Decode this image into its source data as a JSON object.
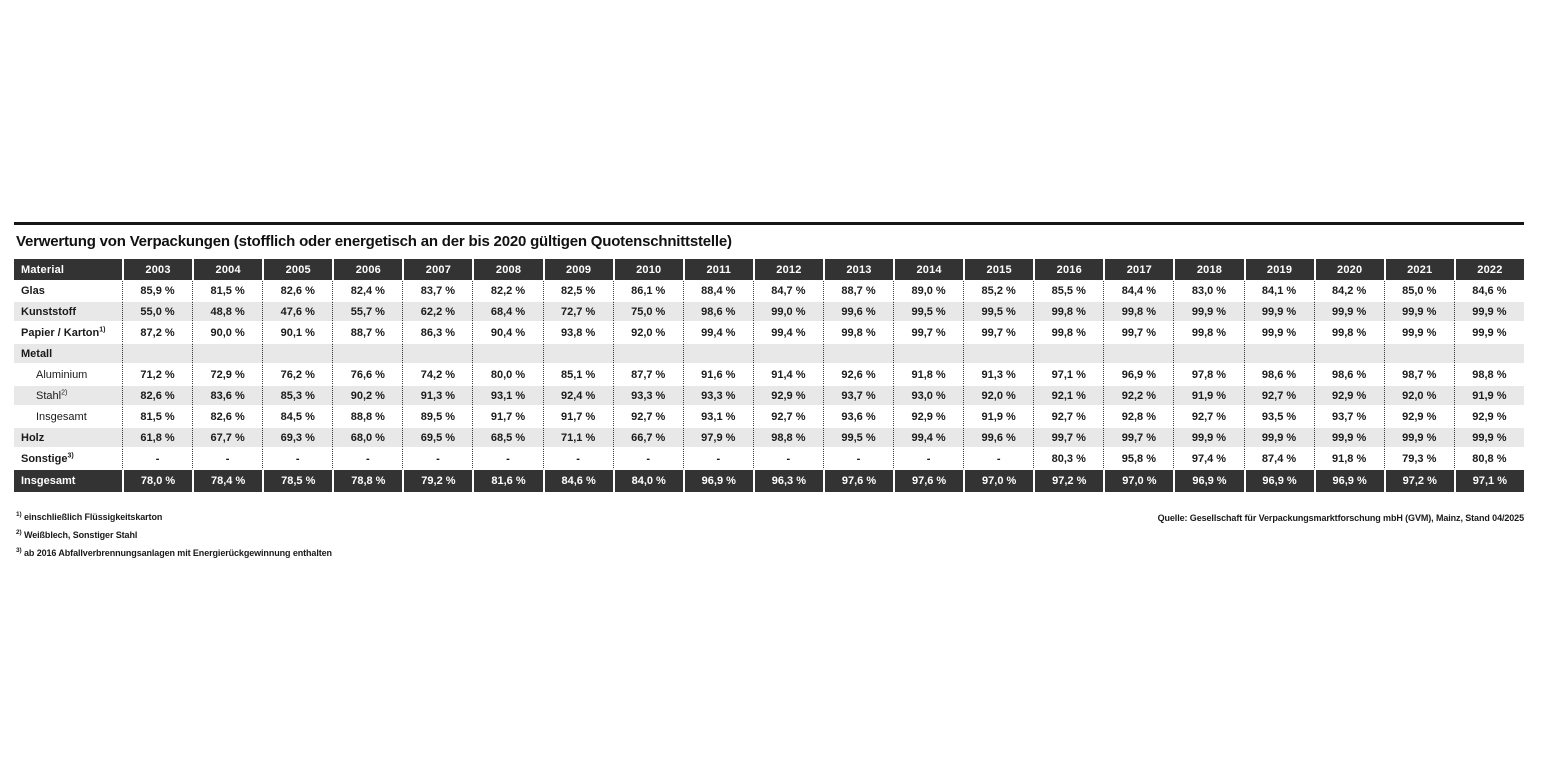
{
  "chart_data": {
    "type": "table",
    "title": "Verwertung von Verpackungen (stofflich oder energetisch an der bis 2020 gültigen Quotenschnittstelle)",
    "material_header": "Material",
    "years": [
      "2003",
      "2004",
      "2005",
      "2006",
      "2007",
      "2008",
      "2009",
      "2010",
      "2011",
      "2012",
      "2013",
      "2014",
      "2015",
      "2016",
      "2017",
      "2018",
      "2019",
      "2020",
      "2021",
      "2022"
    ],
    "rows": [
      {
        "label": "Glas",
        "sup": "",
        "indent": false,
        "bold": true,
        "stripe": false,
        "values": [
          "85,9 %",
          "81,5 %",
          "82,6 %",
          "82,4 %",
          "83,7 %",
          "82,2 %",
          "82,5 %",
          "86,1 %",
          "88,4 %",
          "84,7 %",
          "88,7 %",
          "89,0 %",
          "85,2 %",
          "85,5 %",
          "84,4 %",
          "83,0 %",
          "84,1 %",
          "84,2 %",
          "85,0 %",
          "84,6 %"
        ]
      },
      {
        "label": "Kunststoff",
        "sup": "",
        "indent": false,
        "bold": true,
        "stripe": true,
        "values": [
          "55,0 %",
          "48,8 %",
          "47,6 %",
          "55,7 %",
          "62,2 %",
          "68,4 %",
          "72,7 %",
          "75,0 %",
          "98,6 %",
          "99,0 %",
          "99,6 %",
          "99,5 %",
          "99,5 %",
          "99,8 %",
          "99,8 %",
          "99,9 %",
          "99,9 %",
          "99,9 %",
          "99,9 %",
          "99,9 %"
        ]
      },
      {
        "label": "Papier / Karton",
        "sup": "1)",
        "indent": false,
        "bold": true,
        "stripe": false,
        "values": [
          "87,2 %",
          "90,0 %",
          "90,1 %",
          "88,7 %",
          "86,3 %",
          "90,4 %",
          "93,8 %",
          "92,0 %",
          "99,4 %",
          "99,4 %",
          "99,8 %",
          "99,7 %",
          "99,7 %",
          "99,8 %",
          "99,7 %",
          "99,8 %",
          "99,9 %",
          "99,8 %",
          "99,9 %",
          "99,9 %"
        ]
      },
      {
        "label": "Metall",
        "sup": "",
        "indent": false,
        "bold": true,
        "stripe": true,
        "values": [
          "",
          "",
          "",
          "",
          "",
          "",
          "",
          "",
          "",
          "",
          "",
          "",
          "",
          "",
          "",
          "",
          "",
          "",
          "",
          ""
        ]
      },
      {
        "label": "Aluminium",
        "sup": "",
        "indent": true,
        "bold": false,
        "stripe": false,
        "values": [
          "71,2 %",
          "72,9 %",
          "76,2 %",
          "76,6 %",
          "74,2 %",
          "80,0 %",
          "85,1 %",
          "87,7 %",
          "91,6 %",
          "91,4 %",
          "92,6 %",
          "91,8 %",
          "91,3 %",
          "97,1 %",
          "96,9 %",
          "97,8 %",
          "98,6 %",
          "98,6 %",
          "98,7 %",
          "98,8 %"
        ]
      },
      {
        "label": "Stahl",
        "sup": "2)",
        "indent": true,
        "bold": false,
        "stripe": true,
        "values": [
          "82,6 %",
          "83,6 %",
          "85,3 %",
          "90,2 %",
          "91,3 %",
          "93,1 %",
          "92,4 %",
          "93,3 %",
          "93,3 %",
          "92,9 %",
          "93,7 %",
          "93,0 %",
          "92,0 %",
          "92,1 %",
          "92,2 %",
          "91,9 %",
          "92,7 %",
          "92,9 %",
          "92,0 %",
          "91,9 %"
        ]
      },
      {
        "label": "Insgesamt",
        "sup": "",
        "indent": true,
        "bold": false,
        "stripe": false,
        "values": [
          "81,5 %",
          "82,6 %",
          "84,5 %",
          "88,8 %",
          "89,5 %",
          "91,7 %",
          "91,7 %",
          "92,7 %",
          "93,1 %",
          "92,7 %",
          "93,6 %",
          "92,9 %",
          "91,9 %",
          "92,7 %",
          "92,8 %",
          "92,7 %",
          "93,5 %",
          "93,7 %",
          "92,9 %",
          "92,9 %"
        ]
      },
      {
        "label": "Holz",
        "sup": "",
        "indent": false,
        "bold": true,
        "stripe": true,
        "values": [
          "61,8 %",
          "67,7 %",
          "69,3 %",
          "68,0 %",
          "69,5 %",
          "68,5 %",
          "71,1 %",
          "66,7 %",
          "97,9 %",
          "98,8 %",
          "99,5 %",
          "99,4 %",
          "99,6 %",
          "99,7 %",
          "99,7 %",
          "99,9 %",
          "99,9 %",
          "99,9 %",
          "99,9 %",
          "99,9 %"
        ]
      },
      {
        "label": "Sonstige",
        "sup": "3)",
        "indent": false,
        "bold": true,
        "stripe": false,
        "values": [
          "-",
          "-",
          "-",
          "-",
          "-",
          "-",
          "-",
          "-",
          "-",
          "-",
          "-",
          "-",
          "-",
          "80,3 %",
          "95,8 %",
          "97,4 %",
          "87,4 %",
          "91,8 %",
          "79,3 %",
          "80,8 %"
        ]
      }
    ],
    "total": {
      "label": "Insgesamt",
      "values": [
        "78,0 %",
        "78,4 %",
        "78,5 %",
        "78,8 %",
        "79,2 %",
        "81,6 %",
        "84,6 %",
        "84,0 %",
        "96,9 %",
        "96,3 %",
        "97,6 %",
        "97,6 %",
        "97,0 %",
        "97,2 %",
        "97,0 %",
        "96,9 %",
        "96,9 %",
        "96,9 %",
        "97,2 %",
        "97,1 %"
      ]
    },
    "footnotes": [
      {
        "marker": "1)",
        "text": "einschließlich Flüssigkeitskarton"
      },
      {
        "marker": "2)",
        "text": "Weißblech, Sonstiger Stahl"
      },
      {
        "marker": "3)",
        "text": "ab 2016 Abfallverbrennungsanlagen mit Energierückgewinnung enthalten"
      }
    ],
    "source": "Quelle: Gesellschaft für Verpackungsmarktforschung mbH (GVM), Mainz, Stand 04/2025",
    "colors": {
      "header_bg": "#333333",
      "stripe_bg": "#e8e8e8",
      "total_bg": "#333333",
      "rule": "#161616"
    }
  }
}
